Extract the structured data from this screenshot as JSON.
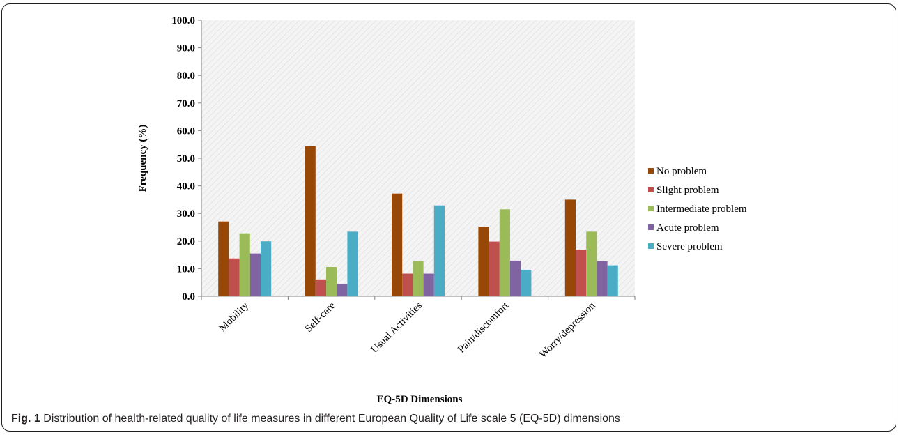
{
  "chart_data": {
    "type": "bar",
    "xlabel": "EQ-5D Dimensions",
    "ylabel": "Frequency (%)",
    "ylim": [
      0,
      100
    ],
    "yticks": [
      "0.0",
      "10.0",
      "20.0",
      "30.0",
      "40.0",
      "50.0",
      "60.0",
      "70.0",
      "80.0",
      "90.0",
      "100.0"
    ],
    "categories": [
      "Mobility",
      "Self-care",
      "Usual Activities",
      "Pain/discomfort",
      "Worry/depression"
    ],
    "series": [
      {
        "name": "No problem",
        "color": "#974706",
        "values": [
          27.1,
          54.4,
          37.2,
          25.2,
          35.0
        ]
      },
      {
        "name": "Slight problem",
        "color": "#c0504d",
        "values": [
          13.7,
          6.1,
          8.2,
          19.8,
          16.9
        ]
      },
      {
        "name": "Intermediate problem",
        "color": "#9bbb59",
        "values": [
          22.8,
          10.6,
          12.7,
          31.5,
          23.4
        ]
      },
      {
        "name": "Acute problem",
        "color": "#8064a2",
        "values": [
          15.5,
          4.4,
          8.2,
          12.9,
          12.7
        ]
      },
      {
        "name": "Severe problem",
        "color": "#4bacc6",
        "values": [
          19.9,
          23.4,
          32.9,
          9.6,
          11.2
        ]
      }
    ],
    "grid": false,
    "legend": "right"
  },
  "caption": {
    "label": "Fig. 1",
    "text": "Distribution of health-related quality of life measures in different European Quality of Life scale 5 (EQ-5D) dimensions"
  }
}
